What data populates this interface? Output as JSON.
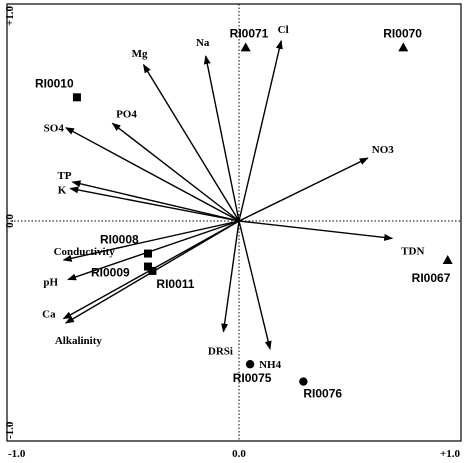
{
  "chart_data": {
    "type": "scatter",
    "subtype": "rda-biplot",
    "xlim": [
      -1.0,
      1.0
    ],
    "ylim": [
      -1.0,
      1.0
    ],
    "x_ticks": [
      {
        "value": -1.0,
        "label": "-1.0"
      },
      {
        "value": 0.0,
        "label": "0.0"
      },
      {
        "value": 1.0,
        "label": "+1.0"
      }
    ],
    "y_ticks": [
      {
        "value": -1.0,
        "label": "-1.0"
      },
      {
        "value": 0.0,
        "label": "0.0"
      },
      {
        "value": 1.0,
        "label": "+1.0"
      }
    ],
    "zero_lines": "dotted",
    "vectors": [
      {
        "name": "Mg",
        "x": -0.43,
        "y": 0.72
      },
      {
        "name": "Na",
        "x": -0.15,
        "y": 0.76
      },
      {
        "name": "Cl",
        "x": 0.19,
        "y": 0.83
      },
      {
        "name": "PO4",
        "x": -0.57,
        "y": 0.45
      },
      {
        "name": "SO4",
        "x": -0.78,
        "y": 0.43
      },
      {
        "name": "NO3",
        "x": 0.58,
        "y": 0.29
      },
      {
        "name": "TP",
        "x": -0.75,
        "y": 0.18
      },
      {
        "name": "K",
        "x": -0.76,
        "y": 0.15
      },
      {
        "name": "TDN",
        "x": 0.69,
        "y": -0.08
      },
      {
        "name": "Conductivity",
        "x": -0.79,
        "y": -0.18
      },
      {
        "name": "pH",
        "x": -0.77,
        "y": -0.27
      },
      {
        "name": "Ca",
        "x": -0.79,
        "y": -0.45
      },
      {
        "name": "Alkalinity",
        "x": -0.78,
        "y": -0.47
      },
      {
        "name": "DRSi",
        "x": -0.07,
        "y": -0.51
      },
      {
        "name": "NH4",
        "x": 0.14,
        "y": -0.59
      }
    ],
    "sites": [
      {
        "name": "RI0071",
        "x": 0.03,
        "y": 0.8,
        "symbol": "triangle"
      },
      {
        "name": "RI0070",
        "x": 0.74,
        "y": 0.8,
        "symbol": "triangle"
      },
      {
        "name": "RI0067",
        "x": 0.94,
        "y": -0.18,
        "symbol": "triangle"
      },
      {
        "name": "RI0010",
        "x": -0.73,
        "y": 0.57,
        "symbol": "square"
      },
      {
        "name": "RI0008",
        "x": -0.41,
        "y": -0.15,
        "symbol": "square"
      },
      {
        "name": "RI0009",
        "x": -0.41,
        "y": -0.21,
        "symbol": "square"
      },
      {
        "name": "RI0011",
        "x": -0.39,
        "y": -0.23,
        "symbol": "square"
      },
      {
        "name": "RI0075",
        "x": 0.05,
        "y": -0.66,
        "symbol": "circle"
      },
      {
        "name": "RI0076",
        "x": 0.29,
        "y": -0.74,
        "symbol": "circle"
      }
    ]
  }
}
